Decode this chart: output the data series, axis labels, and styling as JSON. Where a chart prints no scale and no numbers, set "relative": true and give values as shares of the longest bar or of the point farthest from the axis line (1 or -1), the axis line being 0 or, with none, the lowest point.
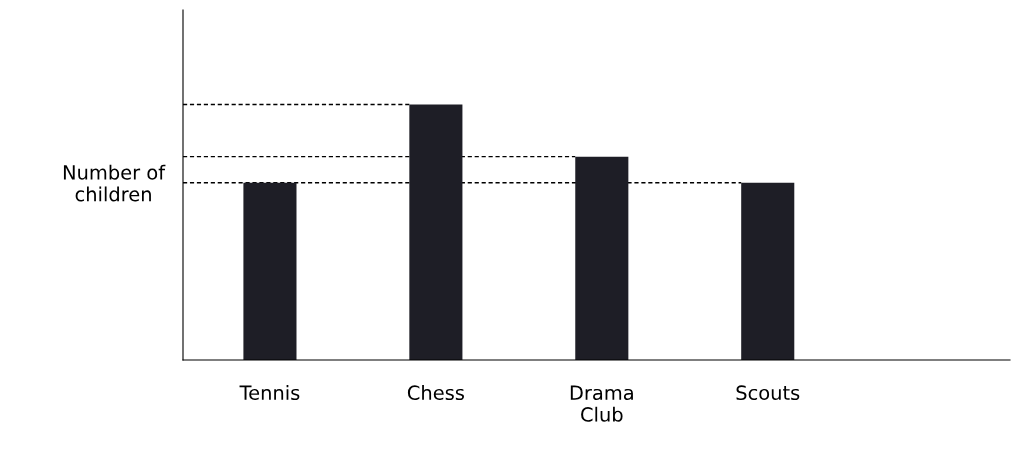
{
  "chart_data": {
    "type": "bar",
    "relative": true,
    "ylabel": "Number of\nchildren",
    "categories": [
      "Tennis",
      "Chess",
      "Drama\nClub",
      "Scouts"
    ],
    "values": [
      0.694,
      1,
      0.796,
      0.694
    ],
    "color": "#1e1e26",
    "ref_lines": [
      {
        "axis": "y",
        "value": 1,
        "line_style": "dashed",
        "color": "#000000"
      },
      {
        "axis": "y",
        "value": 0.796,
        "line_style": "dashed",
        "color": "#000000"
      },
      {
        "axis": "y",
        "value": 0.694,
        "line_style": "dashed",
        "color": "#000000"
      }
    ],
    "grid": false,
    "legend": false
  }
}
